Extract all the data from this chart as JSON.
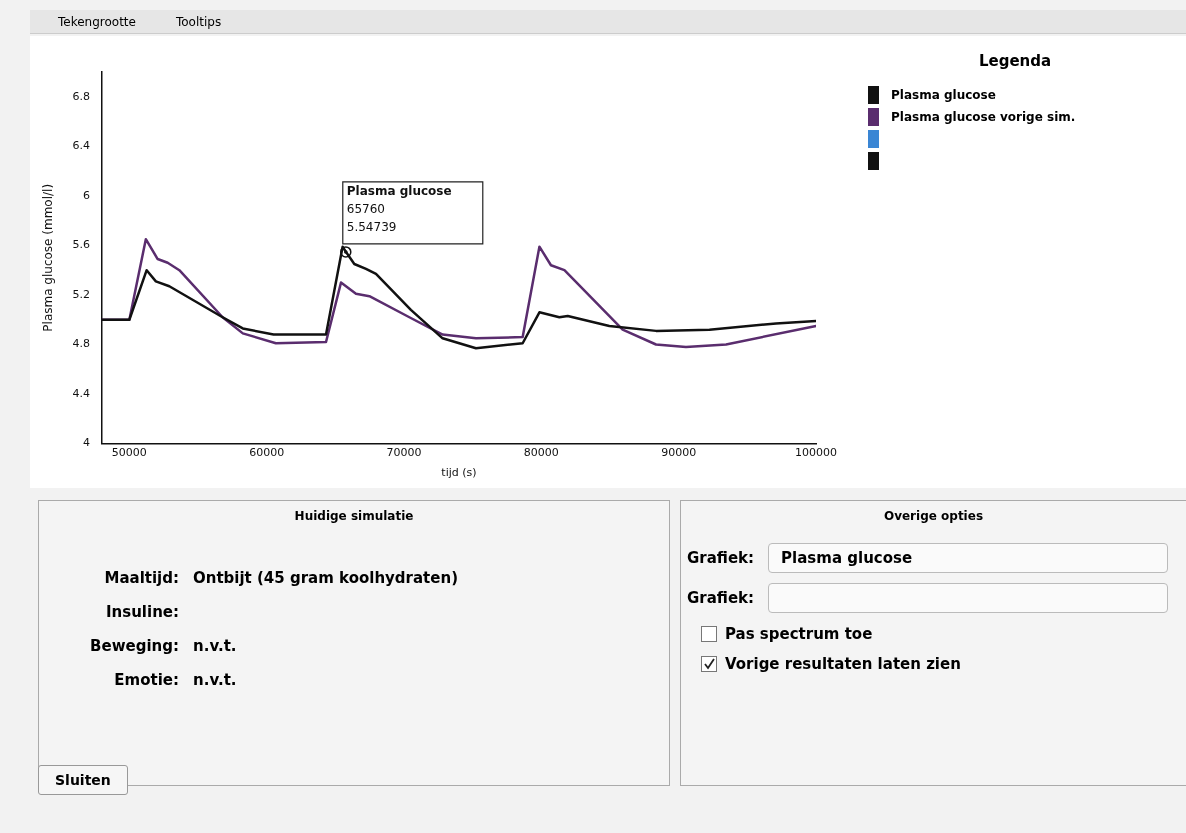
{
  "chart_data": [
    {
      "type": "line",
      "xlabel": "tijd (s)",
      "ylabel": "Plasma glucose (mmol/l)",
      "legend_title": "Legenda",
      "legend": "right",
      "grid": false,
      "marker": "none",
      "line_style": "solid",
      "xlim": [
        48000,
        100000
      ],
      "xticks": [
        50000,
        60000,
        70000,
        80000,
        90000,
        100000
      ],
      "ylim": [
        4,
        7.0
      ],
      "yticks": [
        {
          "value": 4,
          "label": "4"
        },
        {
          "value": 4.4,
          "label": "4.4"
        },
        {
          "value": 4.8,
          "label": "4.8"
        },
        {
          "value": 5.2,
          "label": "5.2"
        },
        {
          "value": 5.6,
          "label": "5.6"
        },
        {
          "value": 6,
          "label": "6"
        },
        {
          "value": 6.4,
          "label": "6.4"
        },
        {
          "value": 6.8,
          "label": "6.8"
        }
      ],
      "annotations": [
        {
          "text": "Plasma glucose\n65760\n5.54739",
          "x": 65760,
          "y": 5.54739
        }
      ],
      "series": [
        {
          "name": "Plasma glucose",
          "color": "#111111",
          "x": [
            48000,
            50000,
            51260,
            51930,
            52910,
            56790,
            58260,
            60500,
            64320,
            65530,
            65760,
            66380,
            67230,
            67960,
            70500,
            72810,
            75240,
            78640,
            79860,
            81310,
            81920,
            84950,
            88350,
            92240,
            97090,
            100000
          ],
          "values": [
            5.0,
            5.0,
            5.4,
            5.31,
            5.27,
            5.02,
            4.93,
            4.88,
            4.88,
            5.59,
            5.55,
            5.45,
            5.41,
            5.37,
            5.08,
            4.85,
            4.77,
            4.81,
            5.06,
            5.02,
            5.03,
            4.95,
            4.91,
            4.92,
            4.97,
            4.99
          ]
        },
        {
          "name": "Plasma glucose vorige sim.",
          "color": "#5a2d6e",
          "x": [
            48000,
            50000,
            51200,
            52060,
            52790,
            53640,
            56790,
            58260,
            60670,
            64320,
            65410,
            66500,
            67480,
            70390,
            72810,
            75240,
            78640,
            79860,
            80700,
            81680,
            85920,
            88350,
            90530,
            93450,
            100000
          ],
          "values": [
            5.0,
            5.0,
            5.65,
            5.49,
            5.46,
            5.4,
            5.02,
            4.89,
            4.81,
            4.82,
            5.3,
            5.21,
            5.19,
            5.02,
            4.88,
            4.85,
            4.86,
            5.59,
            5.44,
            5.4,
            4.92,
            4.8,
            4.78,
            4.8,
            4.95
          ]
        },
        {
          "color": "#3a86d4"
        },
        {
          "color": "#111111"
        }
      ]
    },
    {
      "type": "other",
      "title": "Huidige simulatie",
      "annotations": [
        "Maaltijd:",
        "Ontbijt (45 gram koolhydraten)",
        "Insuline:",
        "Beweging:",
        "n.v.t.",
        "Emotie:",
        "n.v.t."
      ]
    },
    {
      "type": "other",
      "title": "Overige opties",
      "annotations": [
        "Grafiek:",
        "Plasma glucose",
        "Grafiek:",
        "Pas spectrum toe",
        "Vorige resultaten laten zien"
      ]
    },
    {
      "type": "other",
      "annotations": [
        "Tekengrootte",
        "Tooltips",
        "Sluiten"
      ]
    }
  ]
}
